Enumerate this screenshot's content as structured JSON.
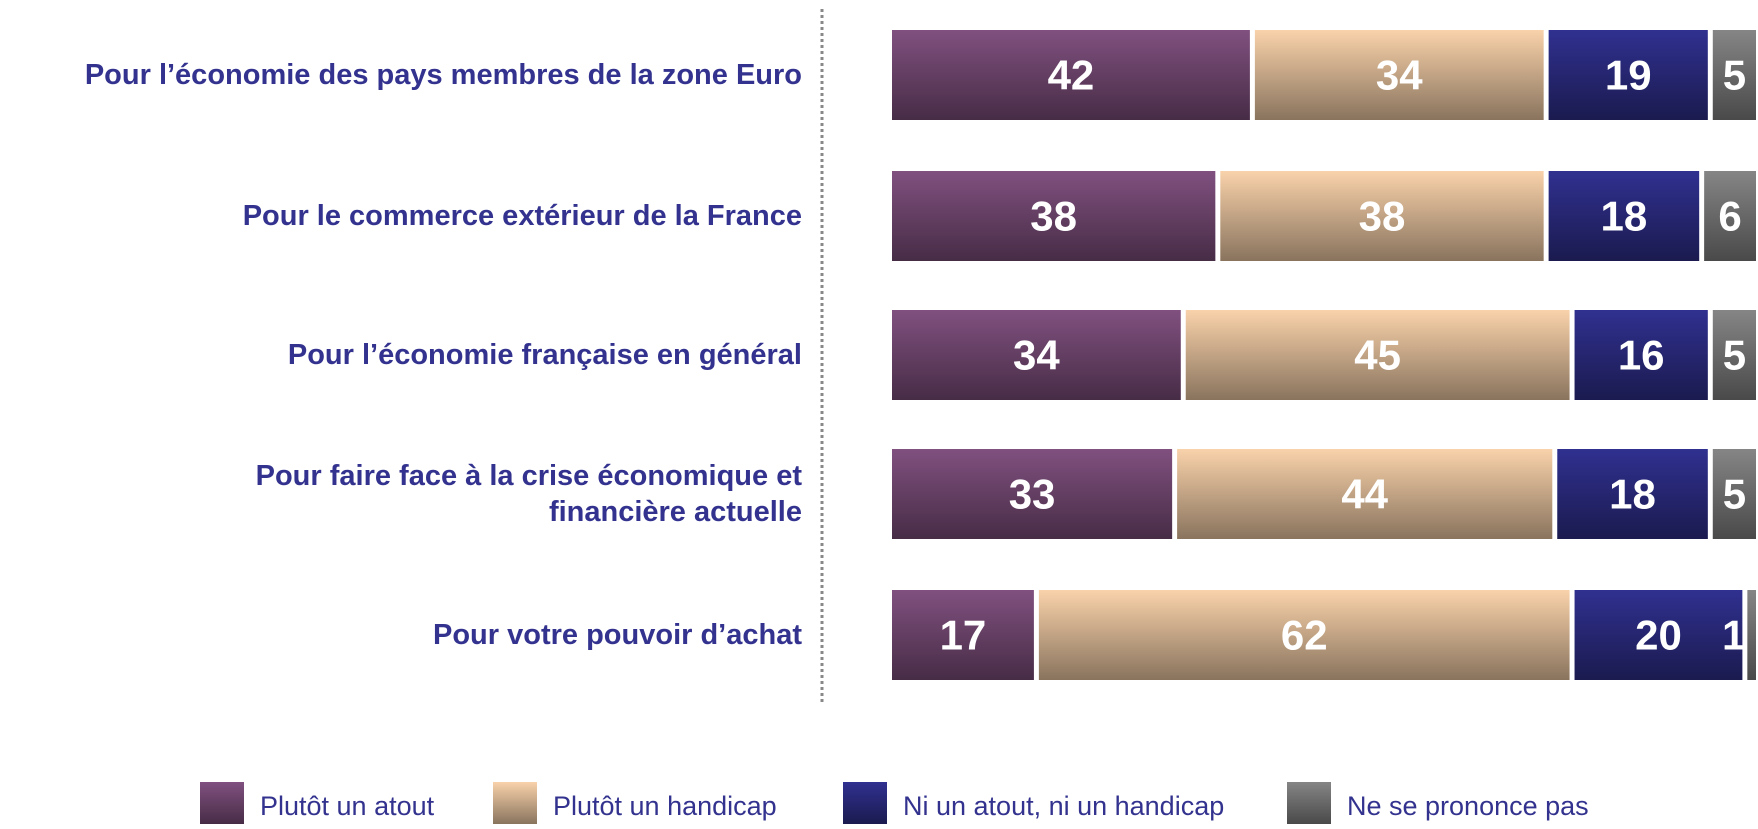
{
  "chart_data": {
    "type": "stacked_barh",
    "categories": [
      "Pour l’économie des pays membres de la zone Euro",
      "Pour le commerce extérieur de la France",
      "Pour l’économie française en général",
      "Pour faire face à la crise économique et\nfinancière actuelle",
      "Pour votre pouvoir d’achat"
    ],
    "series": [
      {
        "name": "Plutôt un atout",
        "color": "#80507f",
        "values": [
          42,
          38,
          34,
          33,
          17
        ]
      },
      {
        "name": "Plutôt un handicap",
        "color": "#f9d2aa",
        "values": [
          34,
          38,
          45,
          44,
          62
        ]
      },
      {
        "name": "Ni un atout, ni un handicap",
        "color": "#303090",
        "values": [
          19,
          18,
          16,
          18,
          20
        ]
      },
      {
        "name": "Ne se prononce pas",
        "color": "#858585",
        "values": [
          5,
          6,
          5,
          5,
          1
        ]
      }
    ],
    "xlim": [
      0,
      100
    ]
  }
}
